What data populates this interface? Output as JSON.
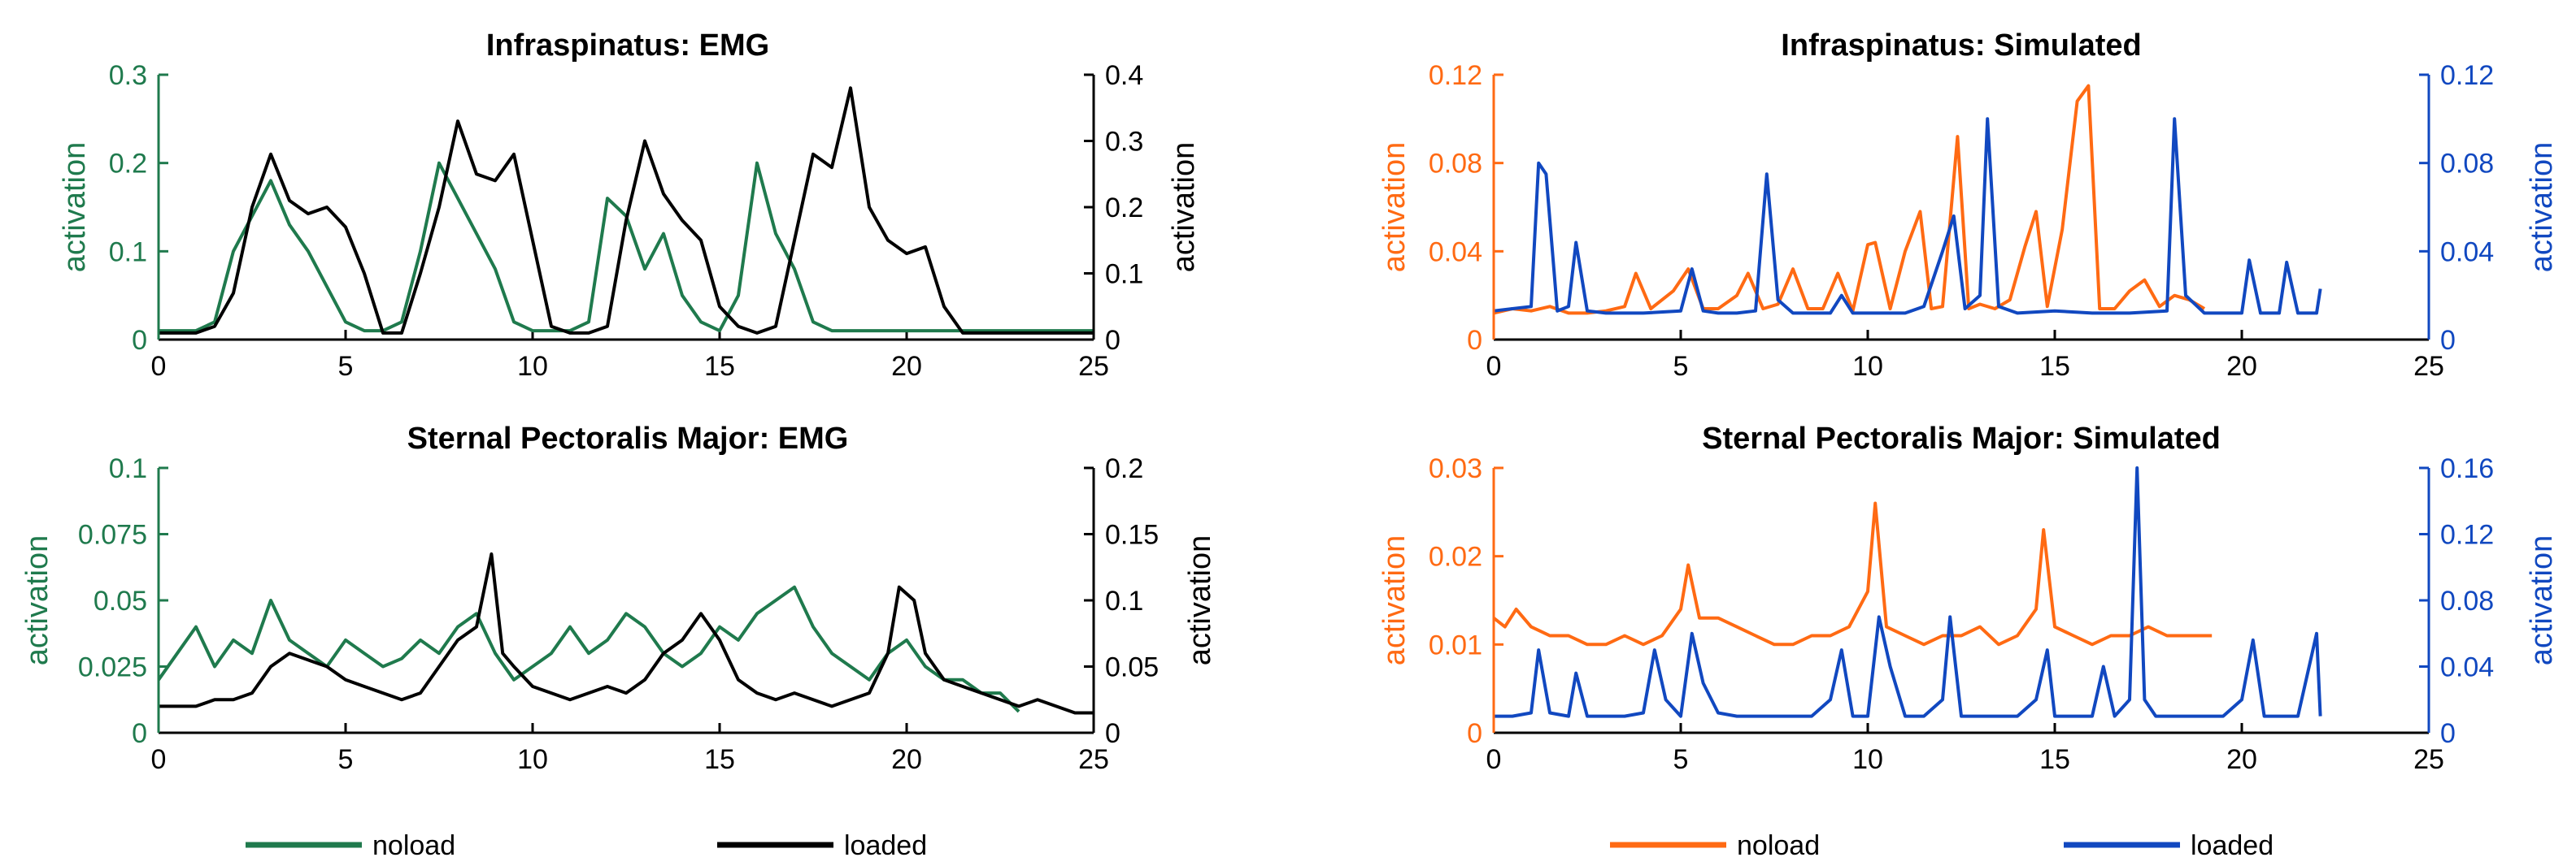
{
  "colors": {
    "green": "#1f7a4d",
    "black": "#000000",
    "orange": "#ff6a13",
    "blue": "#1148c0"
  },
  "legends": {
    "left": {
      "noload": "noload",
      "loaded": "loaded"
    },
    "right": {
      "noload": "noload",
      "loaded": "loaded"
    }
  },
  "chart_data": [
    {
      "type": "line",
      "title": "Infraspinatus: EMG",
      "xlabel": "",
      "xlim": [
        0,
        25
      ],
      "xticks": [
        0,
        5,
        10,
        15,
        20,
        25
      ],
      "left_axis": {
        "label": "activation",
        "ylim": [
          0,
          0.3
        ],
        "ticks": [
          0,
          0.1,
          0.2,
          0.3
        ],
        "tick_labels": [
          "0",
          "0.1",
          "0.2",
          "0.3"
        ],
        "color": "#1f7a4d"
      },
      "right_axis": {
        "label": "activation",
        "ylim": [
          0,
          0.4
        ],
        "ticks": [
          0,
          0.1,
          0.2,
          0.3,
          0.4
        ],
        "tick_labels": [
          "0",
          "0.1",
          "0.2",
          "0.3",
          "0.4"
        ],
        "color": "#000000"
      },
      "series": [
        {
          "name": "noload",
          "axis": "left",
          "color": "#1f7a4d",
          "x": [
            0,
            1,
            1.5,
            2,
            2.5,
            3,
            3.5,
            4,
            4.5,
            5,
            5.5,
            6,
            6.5,
            7,
            7.5,
            8,
            8.5,
            9,
            9.5,
            10,
            10.5,
            11,
            11.5,
            12,
            12.5,
            13,
            13.5,
            14,
            14.5,
            15,
            15.5,
            16,
            16.5,
            17,
            17.5,
            18,
            18.5,
            19,
            19.5,
            20,
            20.5,
            21,
            22,
            23,
            24,
            25
          ],
          "y": [
            0.01,
            0.01,
            0.02,
            0.1,
            0.14,
            0.18,
            0.13,
            0.1,
            0.06,
            0.02,
            0.01,
            0.01,
            0.02,
            0.1,
            0.2,
            0.16,
            0.12,
            0.08,
            0.02,
            0.01,
            0.01,
            0.01,
            0.02,
            0.16,
            0.14,
            0.08,
            0.12,
            0.05,
            0.02,
            0.01,
            0.05,
            0.2,
            0.12,
            0.08,
            0.02,
            0.01,
            0.01,
            0.01,
            0.01,
            0.01,
            0.01,
            0.01,
            0.01,
            0.01,
            0.01,
            0.01
          ]
        },
        {
          "name": "loaded",
          "axis": "right",
          "color": "#000000",
          "x": [
            0,
            1,
            1.5,
            2,
            2.5,
            3,
            3.5,
            4,
            4.5,
            5,
            5.5,
            6,
            6.5,
            7,
            7.5,
            8,
            8.5,
            9,
            9.5,
            10,
            10.5,
            11,
            11.5,
            12,
            12.5,
            13,
            13.5,
            14,
            14.5,
            15,
            15.5,
            16,
            16.5,
            17,
            17.5,
            18,
            18.5,
            19,
            19.5,
            20,
            20.5,
            21,
            21.5,
            22,
            23,
            24,
            25
          ],
          "y": [
            0.01,
            0.01,
            0.02,
            0.07,
            0.2,
            0.28,
            0.21,
            0.19,
            0.2,
            0.17,
            0.1,
            0.01,
            0.01,
            0.1,
            0.2,
            0.33,
            0.25,
            0.24,
            0.28,
            0.15,
            0.02,
            0.01,
            0.01,
            0.02,
            0.18,
            0.3,
            0.22,
            0.18,
            0.15,
            0.05,
            0.02,
            0.01,
            0.02,
            0.15,
            0.28,
            0.26,
            0.38,
            0.2,
            0.15,
            0.13,
            0.14,
            0.05,
            0.01,
            0.01,
            0.01,
            0.01,
            0.01
          ]
        }
      ]
    },
    {
      "type": "line",
      "title": "Infraspinatus: Simulated",
      "xlabel": "",
      "xlim": [
        0,
        25
      ],
      "xticks": [
        0,
        5,
        10,
        15,
        20,
        25
      ],
      "left_axis": {
        "label": "activation",
        "ylim": [
          0,
          0.12
        ],
        "ticks": [
          0,
          0.04,
          0.08,
          0.12
        ],
        "tick_labels": [
          "0",
          "0.04",
          "0.08",
          "0.12"
        ],
        "color": "#ff6a13"
      },
      "right_axis": {
        "label": "activation",
        "ylim": [
          0,
          0.12
        ],
        "ticks": [
          0,
          0.04,
          0.08,
          0.12
        ],
        "tick_labels": [
          "0",
          "0.04",
          "0.08",
          "0.12"
        ],
        "color": "#1148c0"
      },
      "series": [
        {
          "name": "noload",
          "axis": "left",
          "color": "#ff6a13",
          "x": [
            0,
            0.5,
            1,
            1.5,
            2,
            2.5,
            3,
            3.5,
            3.8,
            4.2,
            4.8,
            5.2,
            5.6,
            6,
            6.5,
            6.8,
            7.2,
            7.6,
            8,
            8.4,
            8.8,
            9.2,
            9.6,
            10,
            10.2,
            10.6,
            11,
            11.4,
            11.7,
            12,
            12.4,
            12.7,
            13,
            13.4,
            13.8,
            14.2,
            14.5,
            14.8,
            15.2,
            15.6,
            15.9,
            16.2,
            16.6,
            17,
            17.4,
            17.8,
            18.2,
            18.6,
            19
          ],
          "y": [
            0.012,
            0.014,
            0.013,
            0.015,
            0.012,
            0.012,
            0.013,
            0.015,
            0.03,
            0.014,
            0.022,
            0.032,
            0.014,
            0.014,
            0.02,
            0.03,
            0.014,
            0.016,
            0.032,
            0.014,
            0.014,
            0.03,
            0.013,
            0.043,
            0.044,
            0.014,
            0.04,
            0.058,
            0.014,
            0.015,
            0.092,
            0.014,
            0.016,
            0.014,
            0.018,
            0.042,
            0.058,
            0.015,
            0.05,
            0.108,
            0.115,
            0.014,
            0.014,
            0.022,
            0.027,
            0.015,
            0.02,
            0.018,
            0.014
          ]
        },
        {
          "name": "loaded",
          "axis": "right",
          "color": "#1148c0",
          "x": [
            0,
            0.5,
            1,
            1.2,
            1.4,
            1.7,
            2,
            2.2,
            2.5,
            3,
            4,
            5,
            5.3,
            5.6,
            6,
            6.5,
            7,
            7.3,
            7.6,
            8,
            9,
            9.3,
            9.6,
            10,
            11,
            11.5,
            12,
            12.3,
            12.6,
            13,
            13.2,
            13.5,
            14,
            15,
            16,
            17,
            18,
            18.2,
            18.5,
            19,
            20,
            20.2,
            20.5,
            21,
            21.2,
            21.5,
            22,
            22.1
          ],
          "y": [
            0.013,
            0.014,
            0.015,
            0.08,
            0.075,
            0.013,
            0.015,
            0.044,
            0.013,
            0.012,
            0.012,
            0.013,
            0.032,
            0.013,
            0.012,
            0.012,
            0.013,
            0.075,
            0.018,
            0.012,
            0.012,
            0.02,
            0.012,
            0.012,
            0.012,
            0.015,
            0.04,
            0.056,
            0.014,
            0.02,
            0.1,
            0.015,
            0.012,
            0.013,
            0.012,
            0.012,
            0.013,
            0.1,
            0.02,
            0.012,
            0.012,
            0.036,
            0.012,
            0.012,
            0.035,
            0.012,
            0.012,
            0.023
          ]
        }
      ]
    },
    {
      "type": "line",
      "title": "Sternal Pectoralis Major: EMG",
      "xlabel": "",
      "xlim": [
        0,
        25
      ],
      "xticks": [
        0,
        5,
        10,
        15,
        20,
        25
      ],
      "left_axis": {
        "label": "activation",
        "ylim": [
          0,
          0.1
        ],
        "ticks": [
          0,
          0.025,
          0.05,
          0.075,
          0.1
        ],
        "tick_labels": [
          "0",
          "0.025",
          "0.05",
          "0.075",
          "0.1"
        ],
        "color": "#1f7a4d"
      },
      "right_axis": {
        "label": "activation",
        "ylim": [
          0,
          0.2
        ],
        "ticks": [
          0,
          0.05,
          0.1,
          0.15,
          0.2
        ],
        "tick_labels": [
          "0",
          "0.05",
          "0.1",
          "0.15",
          "0.2"
        ],
        "color": "#000000"
      },
      "series": [
        {
          "name": "noload",
          "axis": "left",
          "color": "#1f7a4d",
          "x": [
            0,
            0.5,
            1,
            1.5,
            2,
            2.5,
            3,
            3.5,
            4,
            4.5,
            5,
            5.5,
            6,
            6.5,
            7,
            7.5,
            8,
            8.5,
            9,
            9.5,
            10,
            10.5,
            11,
            11.5,
            12,
            12.5,
            13,
            13.5,
            14,
            14.5,
            15,
            15.5,
            16,
            16.5,
            17,
            17.5,
            18,
            18.5,
            19,
            19.5,
            20,
            20.5,
            21,
            21.5,
            22,
            22.5,
            23
          ],
          "y": [
            0.02,
            0.03,
            0.04,
            0.025,
            0.035,
            0.03,
            0.05,
            0.035,
            0.03,
            0.025,
            0.035,
            0.03,
            0.025,
            0.028,
            0.035,
            0.03,
            0.04,
            0.045,
            0.03,
            0.02,
            0.025,
            0.03,
            0.04,
            0.03,
            0.035,
            0.045,
            0.04,
            0.03,
            0.025,
            0.03,
            0.04,
            0.035,
            0.045,
            0.05,
            0.055,
            0.04,
            0.03,
            0.025,
            0.02,
            0.03,
            0.035,
            0.025,
            0.02,
            0.02,
            0.015,
            0.015,
            0.008
          ]
        },
        {
          "name": "loaded",
          "axis": "right",
          "color": "#000000",
          "x": [
            0,
            0.5,
            1,
            1.5,
            2,
            2.5,
            3,
            3.5,
            4,
            4.5,
            5,
            5.5,
            6,
            6.5,
            7,
            7.5,
            8,
            8.5,
            8.9,
            9.2,
            9.5,
            10,
            10.5,
            11,
            11.5,
            12,
            12.5,
            13,
            13.5,
            14,
            14.5,
            15,
            15.5,
            16,
            16.5,
            17,
            17.5,
            18,
            18.5,
            19,
            19.5,
            19.8,
            20.2,
            20.5,
            21,
            21.5,
            22,
            22.5,
            23,
            23.5,
            24,
            24.5,
            25
          ],
          "y": [
            0.02,
            0.02,
            0.02,
            0.025,
            0.025,
            0.03,
            0.05,
            0.06,
            0.055,
            0.05,
            0.04,
            0.035,
            0.03,
            0.025,
            0.03,
            0.05,
            0.07,
            0.08,
            0.135,
            0.06,
            0.05,
            0.035,
            0.03,
            0.025,
            0.03,
            0.035,
            0.03,
            0.04,
            0.06,
            0.07,
            0.09,
            0.07,
            0.04,
            0.03,
            0.025,
            0.03,
            0.025,
            0.02,
            0.025,
            0.03,
            0.06,
            0.11,
            0.1,
            0.06,
            0.04,
            0.035,
            0.03,
            0.025,
            0.02,
            0.025,
            0.02,
            0.015,
            0.015
          ]
        }
      ]
    },
    {
      "type": "line",
      "title": "Sternal Pectoralis Major: Simulated",
      "xlabel": "",
      "xlim": [
        0,
        25
      ],
      "xticks": [
        0,
        5,
        10,
        15,
        20,
        25
      ],
      "left_axis": {
        "label": "activation",
        "ylim": [
          0,
          0.03
        ],
        "ticks": [
          0,
          0.01,
          0.02,
          0.03
        ],
        "tick_labels": [
          "0",
          "0.01",
          "0.02",
          "0.03"
        ],
        "color": "#ff6a13"
      },
      "right_axis": {
        "label": "activation",
        "ylim": [
          0,
          0.16
        ],
        "ticks": [
          0,
          0.04,
          0.08,
          0.12,
          0.16
        ],
        "tick_labels": [
          "0",
          "0.04",
          "0.08",
          "0.12",
          "0.16"
        ],
        "color": "#1148c0"
      },
      "series": [
        {
          "name": "noload",
          "axis": "left",
          "color": "#ff6a13",
          "x": [
            0,
            0.3,
            0.6,
            1,
            1.5,
            2,
            2.5,
            3,
            3.5,
            4,
            4.5,
            5,
            5.2,
            5.5,
            6,
            6.5,
            7,
            7.5,
            8,
            8.5,
            9,
            9.5,
            10,
            10.2,
            10.5,
            11,
            11.5,
            12,
            12.5,
            13,
            13.5,
            14,
            14.5,
            14.7,
            15,
            15.5,
            16,
            16.5,
            17,
            17.5,
            18,
            18.5,
            19,
            19.2
          ],
          "y": [
            0.013,
            0.012,
            0.014,
            0.012,
            0.011,
            0.011,
            0.01,
            0.01,
            0.011,
            0.01,
            0.011,
            0.014,
            0.019,
            0.013,
            0.013,
            0.012,
            0.011,
            0.01,
            0.01,
            0.011,
            0.011,
            0.012,
            0.016,
            0.026,
            0.012,
            0.011,
            0.01,
            0.011,
            0.011,
            0.012,
            0.01,
            0.011,
            0.014,
            0.023,
            0.012,
            0.011,
            0.01,
            0.011,
            0.011,
            0.012,
            0.011,
            0.011,
            0.011,
            0.011
          ]
        },
        {
          "name": "loaded",
          "axis": "right",
          "color": "#1148c0",
          "x": [
            0,
            0.5,
            1,
            1.2,
            1.5,
            2,
            2.2,
            2.5,
            3,
            3.5,
            4,
            4.3,
            4.6,
            5,
            5.3,
            5.6,
            6,
            6.5,
            7,
            7.5,
            8,
            8.5,
            9,
            9.3,
            9.6,
            10,
            10.3,
            10.6,
            11,
            11.5,
            12,
            12.2,
            12.5,
            13,
            13.5,
            14,
            14.5,
            14.8,
            15,
            15.5,
            16,
            16.3,
            16.6,
            17,
            17.2,
            17.4,
            17.7,
            18,
            18.5,
            19,
            19.5,
            20,
            20.3,
            20.6,
            21,
            21.5,
            21.8,
            22,
            22.1
          ],
          "y": [
            0.01,
            0.01,
            0.012,
            0.05,
            0.012,
            0.01,
            0.036,
            0.01,
            0.01,
            0.01,
            0.012,
            0.05,
            0.02,
            0.01,
            0.06,
            0.03,
            0.012,
            0.01,
            0.01,
            0.01,
            0.01,
            0.01,
            0.02,
            0.05,
            0.01,
            0.01,
            0.07,
            0.04,
            0.01,
            0.01,
            0.02,
            0.07,
            0.01,
            0.01,
            0.01,
            0.01,
            0.02,
            0.05,
            0.01,
            0.01,
            0.01,
            0.04,
            0.01,
            0.02,
            0.16,
            0.02,
            0.01,
            0.01,
            0.01,
            0.01,
            0.01,
            0.02,
            0.056,
            0.01,
            0.01,
            0.01,
            0.04,
            0.06,
            0.01
          ]
        }
      ]
    }
  ]
}
